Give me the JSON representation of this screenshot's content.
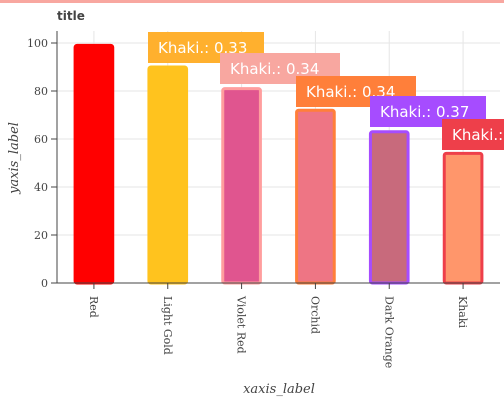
{
  "chart_data": {
    "type": "bar",
    "title": "title",
    "xlabel": "xaxis_label",
    "ylabel": "yaxis_label",
    "ylim": [
      0,
      105
    ],
    "yticks": [
      0,
      20,
      40,
      60,
      80,
      100
    ],
    "categories": [
      "Red",
      "Light Gold",
      "Violet Red",
      "Orchid",
      "Dark Orange",
      "Khaki"
    ],
    "values": [
      99,
      90,
      81,
      72,
      63,
      54
    ],
    "bar_colors": [
      "#ff0000",
      "#ffc31e",
      "#e0558f",
      "#ee7584",
      "#c86a7c",
      "#ff966b"
    ],
    "bar_edge_colors": [
      "#ff0000",
      "#ffc31e",
      "#ff9e9e",
      "#ff7f3a",
      "#a64cff",
      "#ee3f4a"
    ],
    "grid": true,
    "tooltips": [
      {
        "text": "Khaki.: 0.33",
        "color": "#ffb02e"
      },
      {
        "text": "Khaki.: 0.34",
        "color": "#f8a7a0"
      },
      {
        "text": "Khaki.: 0.34",
        "color": "#ff7f3a"
      },
      {
        "text": "Khaki.: 0.37",
        "color": "#a64cff"
      },
      {
        "text": "Khaki.:",
        "color": "#ee3f4a"
      }
    ]
  }
}
